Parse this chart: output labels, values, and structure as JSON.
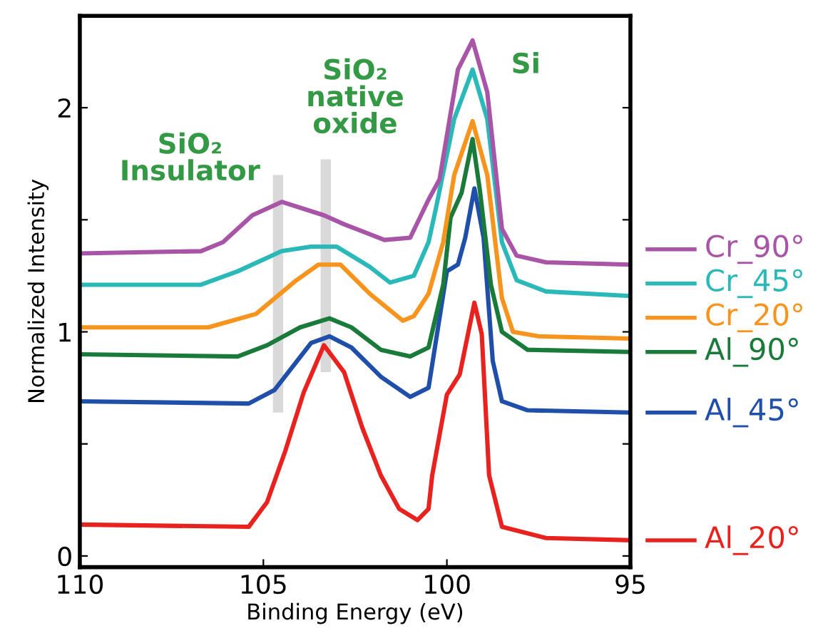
{
  "chart_data": {
    "type": "line",
    "xlabel": "Binding Energy (eV)",
    "ylabel": "Normalized Intensity",
    "xlim": [
      110,
      95
    ],
    "xticks": [
      110,
      105,
      100,
      95
    ],
    "ylim": [
      -0.05,
      2.41
    ],
    "yticks": [
      0,
      {
        "value": 0.5,
        "label": null
      },
      1,
      {
        "value": 1.5,
        "label": null
      },
      2
    ],
    "grid": false,
    "legend": "right",
    "line_style": "solid",
    "marker": "none",
    "annotations": [
      "SiO₂\nInsulator",
      "SiO₂\nnative\noxide",
      "Si"
    ],
    "series": [
      {
        "type": "bar",
        "color": "#d9d9d9",
        "x": [
          104.6,
          103.3
        ],
        "base": [
          0.64,
          0.82
        ],
        "values": [
          1.06,
          0.95
        ]
      },
      {
        "name": "Al_20°",
        "color": "#e8231f",
        "x": [
          110,
          105.4,
          104.9,
          104.4,
          103.9,
          103.35,
          102.8,
          102.3,
          101.8,
          101.3,
          100.8,
          100.5,
          100.4,
          100.0,
          99.65,
          99.25,
          99.05,
          98.85,
          98.5,
          97.3,
          95
        ],
        "values": [
          0.14,
          0.13,
          0.24,
          0.47,
          0.73,
          0.94,
          0.82,
          0.57,
          0.36,
          0.21,
          0.16,
          0.21,
          0.36,
          0.72,
          0.81,
          1.13,
          0.99,
          0.36,
          0.13,
          0.08,
          0.07
        ]
      },
      {
        "name": "Al_45°",
        "color": "#1f4fa8",
        "x": [
          110,
          105.4,
          104.7,
          103.7,
          103.2,
          102.6,
          101.8,
          101.0,
          100.5,
          100.0,
          99.7,
          99.5,
          99.25,
          99.0,
          98.75,
          98.5,
          97.8,
          95
        ],
        "values": [
          0.69,
          0.68,
          0.74,
          0.95,
          0.98,
          0.93,
          0.8,
          0.71,
          0.75,
          1.27,
          1.3,
          1.42,
          1.64,
          1.42,
          0.87,
          0.69,
          0.65,
          0.64
        ]
      },
      {
        "name": "Al_90°",
        "color": "#1a7a3a",
        "x": [
          110,
          105.7,
          104.9,
          104.0,
          103.2,
          102.6,
          101.8,
          101.0,
          100.5,
          100.1,
          99.9,
          99.6,
          99.3,
          99.1,
          98.8,
          98.5,
          97.8,
          95
        ],
        "values": [
          0.9,
          0.89,
          0.94,
          1.02,
          1.06,
          1.02,
          0.92,
          0.89,
          0.93,
          1.21,
          1.51,
          1.62,
          1.86,
          1.63,
          1.21,
          1.0,
          0.92,
          0.91
        ]
      },
      {
        "name": "Cr_20°",
        "color": "#f7941d",
        "x": [
          110,
          106.5,
          105.2,
          104.1,
          103.5,
          102.9,
          102.1,
          101.2,
          100.9,
          100.5,
          100.1,
          99.8,
          99.3,
          98.9,
          98.5,
          98.2,
          97.5,
          95
        ],
        "values": [
          1.02,
          1.02,
          1.08,
          1.23,
          1.3,
          1.3,
          1.17,
          1.05,
          1.07,
          1.17,
          1.4,
          1.7,
          1.94,
          1.7,
          1.15,
          1.0,
          0.98,
          0.97
        ]
      },
      {
        "name": "Cr_45°",
        "color": "#2bb8b8",
        "x": [
          110,
          106.7,
          105.7,
          104.5,
          103.7,
          103.0,
          102.1,
          101.55,
          100.9,
          100.5,
          100.3,
          99.8,
          99.3,
          98.9,
          98.5,
          98.1,
          97.3,
          95
        ],
        "values": [
          1.21,
          1.21,
          1.27,
          1.36,
          1.38,
          1.38,
          1.29,
          1.22,
          1.25,
          1.4,
          1.55,
          1.95,
          2.17,
          1.95,
          1.4,
          1.23,
          1.18,
          1.16
        ]
      },
      {
        "name": "Cr_90°",
        "color": "#a855a8",
        "x": [
          110,
          106.7,
          106.1,
          105.3,
          104.5,
          103.35,
          102.8,
          101.7,
          101.0,
          100.5,
          100.2,
          99.7,
          99.3,
          98.9,
          98.5,
          98.1,
          97.3,
          95
        ],
        "values": [
          1.35,
          1.36,
          1.4,
          1.52,
          1.58,
          1.52,
          1.48,
          1.41,
          1.42,
          1.59,
          1.68,
          2.17,
          2.3,
          2.07,
          1.46,
          1.34,
          1.31,
          1.3
        ]
      }
    ]
  }
}
